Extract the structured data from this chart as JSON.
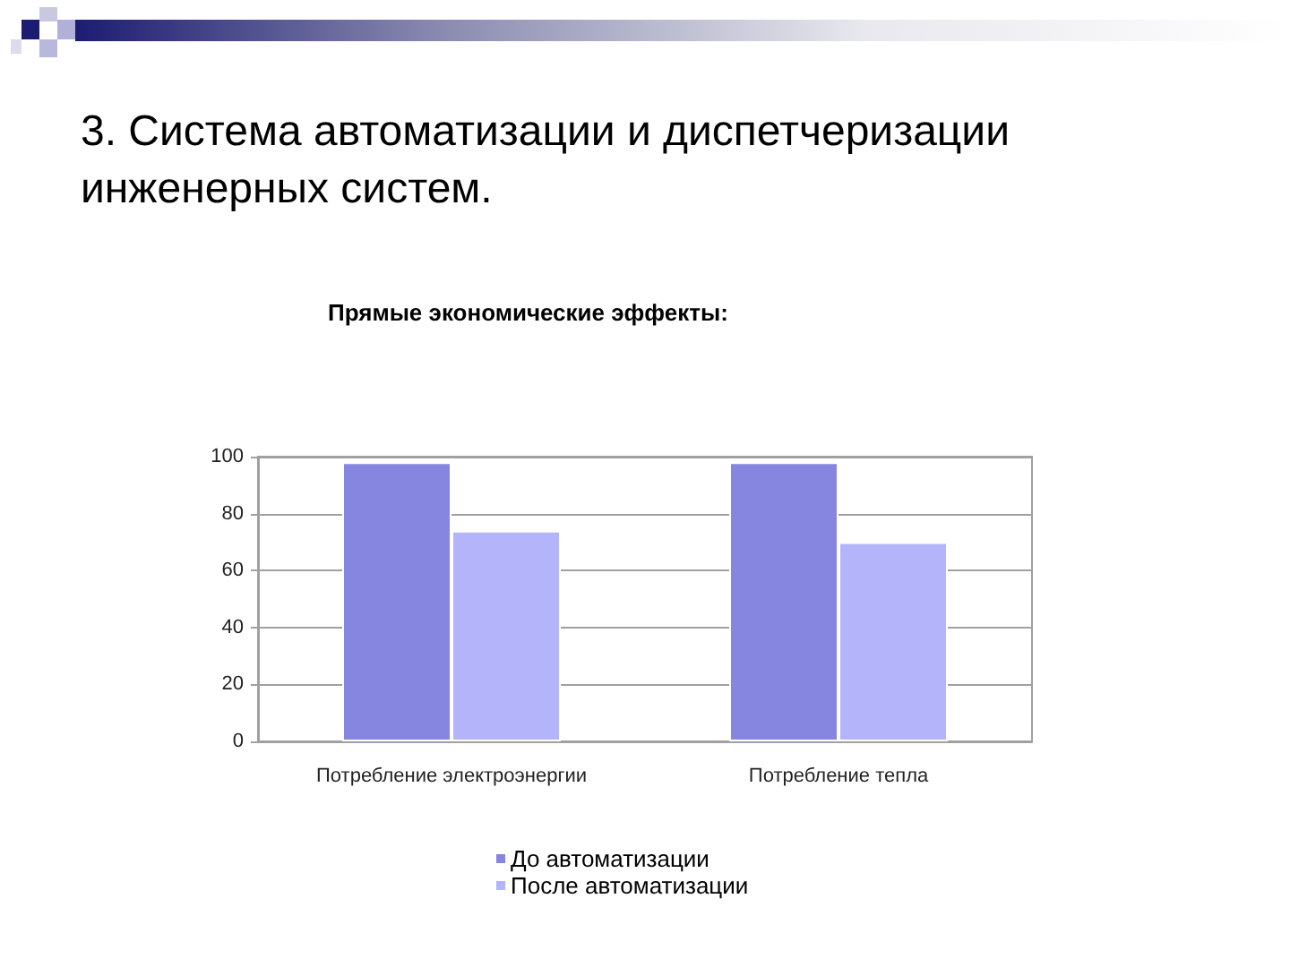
{
  "chart_data": {
    "type": "bar",
    "title": "3. Система автоматизации и диспетчеризации инженерных систем.",
    "subtitle": "Прямые экономические эффекты:",
    "categories": [
      "Потребление электроэнергии",
      "Потребление тепла"
    ],
    "series": [
      {
        "name": "До автоматизации",
        "color": "#8686e0",
        "values": [
          98,
          98
        ]
      },
      {
        "name": "После автоматизации",
        "color": "#b4b4fb",
        "values": [
          74,
          70
        ]
      }
    ],
    "ylim": [
      0,
      100
    ],
    "yticks": [
      0,
      20,
      40,
      60,
      80,
      100
    ],
    "grid": "y",
    "legend": "bottom"
  }
}
